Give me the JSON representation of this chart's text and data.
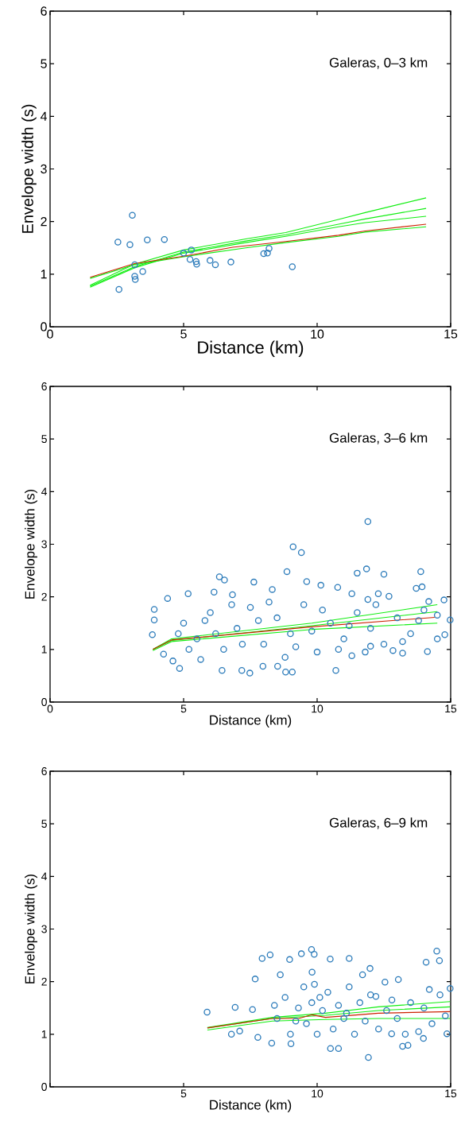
{
  "chart_data": [
    {
      "type": "scatter",
      "xlabel": "Distance (km)",
      "ylabel": "Envelope width (s)",
      "annotations": [
        "Galeras, 0–3 km"
      ],
      "xlim": [
        0,
        15
      ],
      "ylim": [
        0,
        6
      ],
      "xticks": [
        0,
        5,
        10,
        15
      ],
      "yticks": [
        0,
        1,
        2,
        3,
        4,
        5,
        6
      ],
      "series": [
        {
          "marker": "circle",
          "color": "#2b7bba",
          "x": [
            2.54,
            2.58,
            2.99,
            3.08,
            3.17,
            3.17,
            3.19,
            3.47,
            3.64,
            4.28,
            5.0,
            5.24,
            5.29,
            5.47,
            5.49,
            5.99,
            6.19,
            6.77,
            8.0,
            8.14,
            8.2,
            9.07
          ],
          "values": [
            1.61,
            0.71,
            1.56,
            2.12,
            1.18,
            0.96,
            0.9,
            1.05,
            1.65,
            1.66,
            1.4,
            1.28,
            1.46,
            1.24,
            1.19,
            1.26,
            1.18,
            1.23,
            1.39,
            1.4,
            1.49,
            1.14
          ]
        },
        {
          "type": "line",
          "color": "#11ee11",
          "x": [
            1.5,
            3.16,
            5.0,
            7.33,
            8.82,
            10.8,
            11.8,
            14.08
          ],
          "values": [
            0.79,
            1.19,
            1.46,
            1.67,
            1.79,
            2.04,
            2.17,
            2.45
          ]
        },
        {
          "type": "line",
          "color": "#11ee11",
          "x": [
            1.5,
            3.16,
            5.0,
            7.33,
            8.82,
            10.8,
            11.8,
            14.08
          ],
          "values": [
            0.77,
            1.14,
            1.42,
            1.63,
            1.75,
            1.95,
            2.05,
            2.25
          ]
        },
        {
          "type": "line",
          "color": "#11ee11",
          "x": [
            1.5,
            3.16,
            5.0,
            7.33,
            8.82,
            10.8,
            11.8,
            14.08
          ],
          "values": [
            0.75,
            1.12,
            1.4,
            1.6,
            1.72,
            1.9,
            1.98,
            2.1
          ]
        },
        {
          "type": "line",
          "color": "#11ee11",
          "x": [
            1.5,
            3.16,
            5.0,
            7.33,
            8.82,
            10.8,
            11.8,
            14.08
          ],
          "values": [
            0.92,
            1.18,
            1.33,
            1.5,
            1.6,
            1.72,
            1.8,
            1.9
          ]
        },
        {
          "type": "line",
          "color": "#cc2200",
          "x": [
            1.5,
            3.16,
            5.0,
            6.83,
            8.82,
            10.8,
            11.8,
            14.08
          ],
          "values": [
            0.94,
            1.2,
            1.34,
            1.51,
            1.62,
            1.74,
            1.82,
            1.95
          ]
        }
      ]
    },
    {
      "type": "scatter",
      "xlabel": "Distance (km)",
      "ylabel": "Envelope width (s)",
      "annotations": [
        "Galeras, 3–6 km"
      ],
      "xlim": [
        0,
        15
      ],
      "ylim": [
        0,
        6
      ],
      "xticks": [
        0,
        5,
        10,
        15
      ],
      "yticks": [
        0,
        1,
        2,
        3,
        4,
        5,
        6
      ],
      "series": [
        {
          "marker": "circle",
          "color": "#2b7bba",
          "x": [
            11.9,
            9.1,
            9.41,
            8.87,
            6.34,
            11.85,
            11.5,
            12.5,
            13.88,
            13.71,
            13.93,
            7.63,
            10.14,
            10.77,
            5.17,
            4.4,
            3.9,
            3.9,
            3.83,
            4.85,
            7.18,
            7.48,
            7.97,
            8.82,
            9.07,
            10.7,
            12.0,
            13.2,
            14.13,
            14.78,
            14.98,
            14.75,
            12.29,
            12.69,
            14.18,
            11.3,
            11.9,
            6.53,
            6.14,
            6.83,
            8.32,
            9.61,
            11.3,
            12.84,
            4.6,
            4.25,
            5.64,
            6.44,
            8.52,
            5.0,
            5.5,
            6.0,
            6.5,
            7.0,
            7.5,
            8.0,
            8.5,
            9.0,
            9.5,
            10.0,
            10.5,
            11.0,
            11.5,
            12.0,
            12.5,
            13.0,
            13.5,
            14.0,
            5.2,
            6.2,
            7.2,
            8.2,
            9.2,
            10.2,
            11.2,
            12.2,
            13.2,
            4.8,
            7.8,
            9.8,
            10.8,
            6.8,
            8.8,
            11.8,
            13.8,
            5.8,
            14.5,
            14.5
          ],
          "values": [
            3.43,
            2.95,
            2.84,
            2.48,
            2.38,
            2.53,
            2.45,
            2.43,
            2.48,
            2.16,
            2.19,
            2.28,
            2.22,
            2.18,
            2.06,
            1.97,
            1.76,
            1.56,
            1.28,
            0.64,
            0.6,
            0.55,
            0.68,
            0.57,
            0.57,
            0.6,
            1.06,
            0.93,
            0.96,
            1.28,
            1.56,
            1.94,
            2.06,
            2.01,
            1.91,
            2.06,
            1.95,
            2.32,
            2.09,
            2.04,
            2.14,
            2.29,
            0.88,
            0.98,
            0.78,
            0.91,
            0.81,
            0.6,
            0.68,
            1.5,
            1.2,
            1.7,
            1.0,
            1.4,
            1.8,
            1.1,
            1.6,
            1.3,
            1.85,
            0.95,
            1.5,
            1.2,
            1.7,
            1.4,
            1.1,
            1.6,
            1.3,
            1.75,
            1.0,
            1.3,
            1.1,
            1.9,
            1.05,
            1.75,
            1.45,
            1.85,
            1.15,
            1.3,
            1.55,
            1.35,
            1.0,
            1.85,
            0.85,
            0.95,
            1.55,
            1.55,
            1.2,
            1.65
          ]
        },
        {
          "type": "line",
          "color": "#11ee11",
          "x": [
            3.85,
            4.55,
            9.8,
            14.5
          ],
          "values": [
            1.0,
            1.2,
            1.5,
            1.85
          ]
        },
        {
          "type": "line",
          "color": "#11ee11",
          "x": [
            3.85,
            4.55,
            9.8,
            14.5
          ],
          "values": [
            1.0,
            1.17,
            1.45,
            1.72
          ]
        },
        {
          "type": "line",
          "color": "#11ee11",
          "x": [
            3.85,
            4.55,
            9.8,
            14.5
          ],
          "values": [
            0.98,
            1.15,
            1.38,
            1.5
          ]
        },
        {
          "type": "line",
          "color": "#cc2200",
          "x": [
            3.85,
            4.55,
            9.8,
            14.4
          ],
          "values": [
            1.0,
            1.18,
            1.43,
            1.61
          ]
        }
      ]
    },
    {
      "type": "scatter",
      "xlabel": "Distance (km)",
      "ylabel": "Envelope width (s)",
      "annotations": [
        "Galeras, 6–9 km"
      ],
      "xlim": [
        0,
        15
      ],
      "ylim": [
        0,
        6
      ],
      "xticks": [
        {
          "value": 0,
          "label": null
        },
        5,
        10,
        15
      ],
      "yticks": [
        0,
        1,
        2,
        3,
        4,
        5,
        6
      ],
      "series": [
        {
          "marker": "circle",
          "color": "#2b7bba",
          "x": [
            5.88,
            6.93,
            7.1,
            6.79,
            7.94,
            8.24,
            9.79,
            9.89,
            11.2,
            10.49,
            11.98,
            14.48,
            14.58,
            14.08,
            11.92,
            10.8,
            10.5,
            13.2,
            13.4,
            8.3,
            9.02,
            7.78,
            7.58,
            7.68,
            14.98,
            13.04,
            12.54,
            14.86,
            13.98,
            12.79,
            12.2,
            8.97,
            9.41,
            11.7,
            8.62,
            9.81,
            8.5,
            8.8,
            9.0,
            9.3,
            9.5,
            9.6,
            9.8,
            10.0,
            10.2,
            10.4,
            10.6,
            10.8,
            11.0,
            11.2,
            11.4,
            11.6,
            11.8,
            12.0,
            12.3,
            12.6,
            13.0,
            13.5,
            13.8,
            14.0,
            14.3,
            14.6,
            14.8,
            9.2,
            10.1,
            8.4,
            11.1,
            12.8,
            9.9,
            13.3,
            14.2
          ],
          "values": [
            1.42,
            1.51,
            1.06,
            1.0,
            2.44,
            2.51,
            2.61,
            2.52,
            2.44,
            2.43,
            2.25,
            2.58,
            2.4,
            2.37,
            0.56,
            0.73,
            0.73,
            0.77,
            0.79,
            0.83,
            0.82,
            0.94,
            1.47,
            2.05,
            1.87,
            2.04,
            1.99,
            1.01,
            0.92,
            1.01,
            1.72,
            2.42,
            2.53,
            2.13,
            2.13,
            2.18,
            1.3,
            1.7,
            1.0,
            1.5,
            1.9,
            1.2,
            1.6,
            1.0,
            1.45,
            1.8,
            1.1,
            1.55,
            1.3,
            1.9,
            1.0,
            1.6,
            1.25,
            1.75,
            1.1,
            1.45,
            1.3,
            1.6,
            1.05,
            1.5,
            1.2,
            1.75,
            1.35,
            1.25,
            1.7,
            1.55,
            1.4,
            1.65,
            1.95,
            1.0,
            1.85
          ]
        },
        {
          "type": "line",
          "color": "#11ee11",
          "x": [
            5.89,
            8.32,
            10.31,
            12.29,
            14.98
          ],
          "values": [
            1.13,
            1.32,
            1.4,
            1.52,
            1.62
          ]
        },
        {
          "type": "line",
          "color": "#11ee11",
          "x": [
            5.89,
            8.32,
            10.31,
            12.29,
            14.98
          ],
          "values": [
            1.12,
            1.3,
            1.36,
            1.45,
            1.52
          ]
        },
        {
          "type": "line",
          "color": "#11ee11",
          "x": [
            5.89,
            8.32,
            10.31,
            12.29,
            14.98
          ],
          "values": [
            1.08,
            1.25,
            1.28,
            1.3,
            1.3
          ]
        },
        {
          "type": "line",
          "color": "#cc2200",
          "x": [
            5.89,
            8.32,
            9.31,
            9.81,
            10.31,
            12.29,
            14.98
          ],
          "values": [
            1.12,
            1.3,
            1.3,
            1.37,
            1.32,
            1.4,
            1.43
          ]
        }
      ]
    }
  ]
}
